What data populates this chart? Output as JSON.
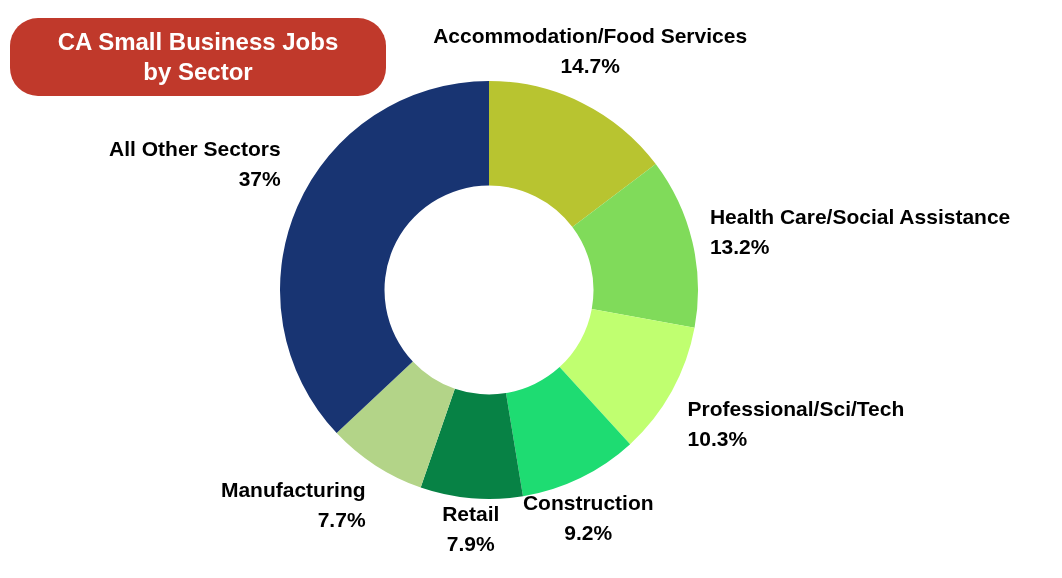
{
  "chart_data": {
    "type": "donut",
    "title": "CA Small Business Jobs by Sector",
    "categories": [
      "Accommodation/Food Services",
      "Health Care/Social Assistance",
      "Professional/Sci/Tech",
      "Construction",
      "Retail",
      "Manufacturing",
      "All Other Sectors"
    ],
    "values": [
      14.7,
      13.2,
      10.3,
      9.2,
      7.9,
      7.7,
      37
    ],
    "value_labels": [
      "14.7%",
      "13.2%",
      "10.3%",
      "9.2%",
      "7.9%",
      "7.7%",
      "37%"
    ],
    "colors": [
      "#b8c430",
      "#80db5a",
      "#c0ff70",
      "#1edc72",
      "#078245",
      "#b3d488",
      "#183472"
    ],
    "legend": false
  }
}
